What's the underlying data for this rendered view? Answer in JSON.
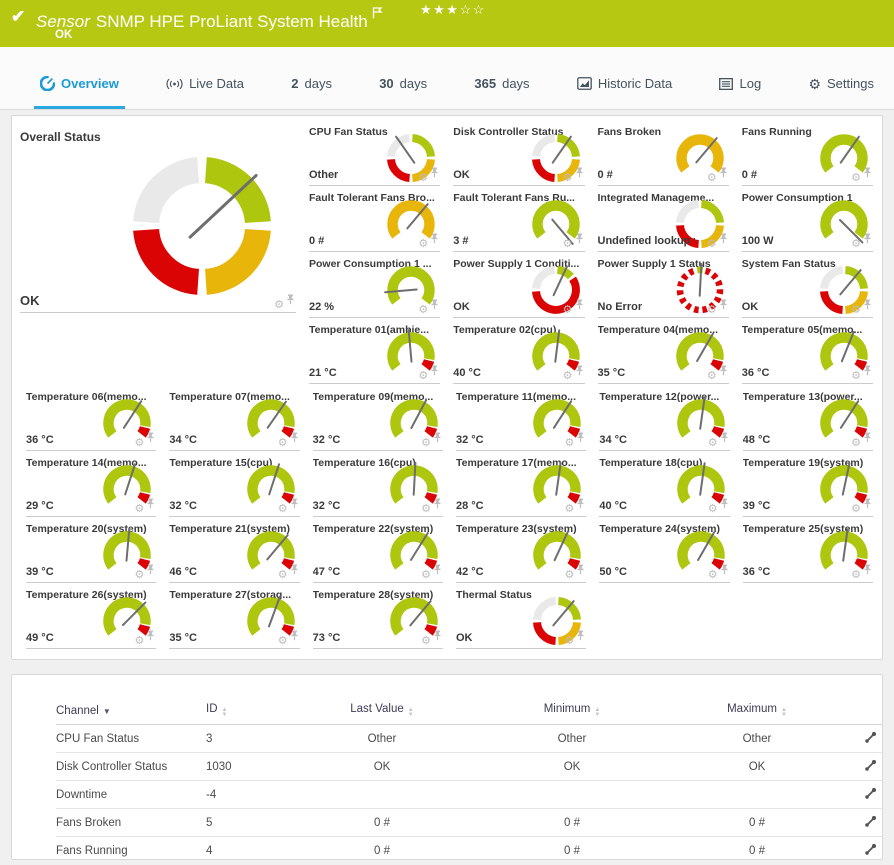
{
  "header": {
    "kind": "Sensor",
    "title": "SNMP HPE ProLiant System Health",
    "status": "OK",
    "rating": {
      "filled": 3,
      "total": 5
    },
    "bar_color": "#b7c813"
  },
  "tabs": [
    {
      "label": "Overview",
      "icon": "gauge",
      "active": true
    },
    {
      "label": "Live Data",
      "icon": "live",
      "active": false
    },
    {
      "bold": "2",
      "label": "days",
      "active": false
    },
    {
      "bold": "30",
      "label": "days",
      "active": false
    },
    {
      "bold": "365",
      "label": "days",
      "active": false
    },
    {
      "label": "Historic Data",
      "icon": "chart",
      "active": false
    },
    {
      "label": "Log",
      "icon": "log",
      "active": false
    },
    {
      "label": "Settings",
      "icon": "gear",
      "active": false
    }
  ],
  "overall": {
    "title": "Overall Status",
    "value": "OK",
    "kind": "status",
    "needle": 47
  },
  "gauges": {
    "top": [
      {
        "title": "CPU Fan Status",
        "value": "Other",
        "kind": "status",
        "needle": -35
      },
      {
        "title": "Disk Controller Status",
        "value": "OK",
        "kind": "status",
        "needle": 35
      },
      {
        "title": "Fans Broken",
        "value": "0 #",
        "kind": "arc-yellow",
        "needle": 40
      },
      {
        "title": "Fans Running",
        "value": "0 #",
        "kind": "arc-green",
        "needle": 35
      },
      {
        "title": "Fault Tolerant Fans Bro...",
        "value": "0 #",
        "kind": "arc-yellow",
        "needle": 40
      },
      {
        "title": "Fault Tolerant Fans Ru...",
        "value": "3 #",
        "kind": "arc-green",
        "needle": 140
      },
      {
        "title": "Integrated Manageme...",
        "value": "Undefined lookup v...",
        "kind": "status",
        "needle": null
      },
      {
        "title": "Power Consumption 1",
        "value": "100 W",
        "kind": "arc-green",
        "needle": 135
      },
      {
        "title": "Power Consumption 1 ...",
        "value": "22 %",
        "kind": "arc-green",
        "needle": -95
      },
      {
        "title": "Power Supply 1 Conditi...",
        "value": "OK",
        "kind": "psu",
        "needle": 25
      },
      {
        "title": "Power Supply 1 Status",
        "value": "No Error",
        "kind": "dashed",
        "needle": 3
      },
      {
        "title": "System Fan Status",
        "value": "OK",
        "kind": "status",
        "needle": 40
      },
      {
        "title": "Temperature 01(ambie...",
        "value": "21 °C",
        "kind": "temp",
        "needle": -5
      },
      {
        "title": "Temperature 02(cpu)",
        "value": "40 °C",
        "kind": "temp",
        "needle": 7
      },
      {
        "title": "Temperature 04(memo...",
        "value": "35 °C",
        "kind": "temp",
        "needle": 30
      },
      {
        "title": "Temperature 05(memo...",
        "value": "36 °C",
        "kind": "temp",
        "needle": 22
      }
    ],
    "bottom": [
      {
        "title": "Temperature 06(memo...",
        "value": "36 °C",
        "kind": "temp",
        "needle": 33
      },
      {
        "title": "Temperature 07(memo...",
        "value": "34 °C",
        "kind": "temp",
        "needle": 35
      },
      {
        "title": "Temperature 09(memo...",
        "value": "32 °C",
        "kind": "temp",
        "needle": 28
      },
      {
        "title": "Temperature 11(memo...",
        "value": "32 °C",
        "kind": "temp",
        "needle": 33
      },
      {
        "title": "Temperature 12(power...",
        "value": "34 °C",
        "kind": "temp",
        "needle": 8
      },
      {
        "title": "Temperature 13(power...",
        "value": "48 °C",
        "kind": "temp",
        "needle": 33
      },
      {
        "title": "Temperature 14(memo...",
        "value": "29 °C",
        "kind": "temp",
        "needle": 18
      },
      {
        "title": "Temperature 15(cpu)",
        "value": "32 °C",
        "kind": "temp",
        "needle": 18
      },
      {
        "title": "Temperature 16(cpu)",
        "value": "32 °C",
        "kind": "temp",
        "needle": 3
      },
      {
        "title": "Temperature 17(memo...",
        "value": "28 °C",
        "kind": "temp",
        "needle": 8
      },
      {
        "title": "Temperature 18(cpu)",
        "value": "40 °C",
        "kind": "temp",
        "needle": 8
      },
      {
        "title": "Temperature 19(system)",
        "value": "39 °C",
        "kind": "temp",
        "needle": 12
      },
      {
        "title": "Temperature 20(system)",
        "value": "39 °C",
        "kind": "temp",
        "needle": 5
      },
      {
        "title": "Temperature 21(system)",
        "value": "46 °C",
        "kind": "temp",
        "needle": 40
      },
      {
        "title": "Temperature 22(system)",
        "value": "47 °C",
        "kind": "temp",
        "needle": 32
      },
      {
        "title": "Temperature 23(system)",
        "value": "42 °C",
        "kind": "temp",
        "needle": 25
      },
      {
        "title": "Temperature 24(system)",
        "value": "50 °C",
        "kind": "temp",
        "needle": 30
      },
      {
        "title": "Temperature 25(system)",
        "value": "36 °C",
        "kind": "temp",
        "needle": 8
      },
      {
        "title": "Temperature 26(system)",
        "value": "49 °C",
        "kind": "temp",
        "needle": 45
      },
      {
        "title": "Temperature 27(storag...",
        "value": "35 °C",
        "kind": "temp",
        "needle": 20
      },
      {
        "title": "Temperature 28(system)",
        "value": "73 °C",
        "kind": "temp",
        "needle": 40
      },
      {
        "title": "Thermal Status",
        "value": "OK",
        "kind": "status",
        "needle": 40
      }
    ]
  },
  "table": {
    "columns": [
      "Channel",
      "ID",
      "Last Value",
      "Minimum",
      "Maximum"
    ],
    "sorted_by": "Channel",
    "rows": [
      [
        "CPU Fan Status",
        "3",
        "Other",
        "Other",
        "Other"
      ],
      [
        "Disk Controller Status",
        "1030",
        "OK",
        "OK",
        "OK"
      ],
      [
        "Downtime",
        "-4",
        "",
        "",
        ""
      ],
      [
        "Fans Broken",
        "5",
        "0 #",
        "0 #",
        "0 #"
      ],
      [
        "Fans Running",
        "4",
        "0 #",
        "0 #",
        "0 #"
      ]
    ]
  },
  "colors": {
    "green": "#aec60e",
    "yellow": "#e8b50a",
    "red": "#db0404",
    "gray": "#e9e9e9",
    "needle": "#6e6e6e",
    "accent_blue": "#1a9bd7"
  }
}
